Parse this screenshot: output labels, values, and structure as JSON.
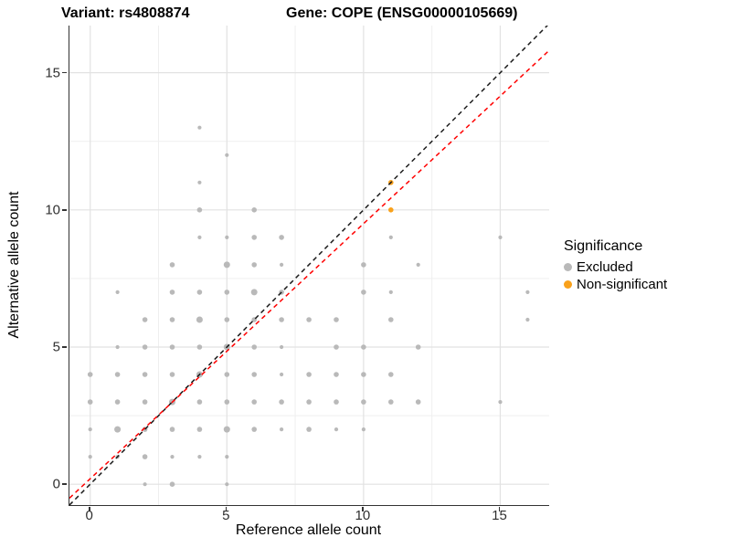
{
  "titles": {
    "variant": "Variant: rs4808874",
    "gene": "Gene: COPE (ENSG00000105669)"
  },
  "axes": {
    "x": {
      "label": "Reference allele count",
      "ticks": [
        "0",
        "5",
        "10",
        "15"
      ],
      "tick_values": [
        0,
        5,
        10,
        15
      ]
    },
    "y": {
      "label": "Alternative allele count",
      "ticks": [
        "0",
        "5",
        "10",
        "15"
      ],
      "tick_values": [
        0,
        5,
        10,
        15
      ]
    }
  },
  "legend": {
    "title": "Significance",
    "items": [
      {
        "label": "Excluded",
        "color": "#B9B9B9"
      },
      {
        "label": "Non-significant",
        "color": "#F9A11B"
      }
    ]
  },
  "chart_data": {
    "type": "scatter",
    "title": "Variant: rs4808874 / Gene: COPE (ENSG00000105669)",
    "xlabel": "Reference allele count",
    "ylabel": "Alternative allele count",
    "xlim": [
      -0.76,
      16.79
    ],
    "ylim": [
      -0.76,
      16.72
    ],
    "grid": true,
    "major_breaks": [
      0,
      5,
      10,
      15
    ],
    "minor_breaks": [
      2.5,
      7.5,
      12.5
    ],
    "legend_position": "right",
    "series": [
      {
        "name": "Excluded",
        "color": "#B9B9B9",
        "points": [
          [
            4,
            13,
            1
          ],
          [
            5,
            12,
            1
          ],
          [
            4,
            11,
            1
          ],
          [
            4,
            10,
            2
          ],
          [
            6,
            10,
            2
          ],
          [
            4,
            9,
            1
          ],
          [
            5,
            9,
            1
          ],
          [
            6,
            9,
            2
          ],
          [
            7,
            9,
            2
          ],
          [
            11,
            9,
            1
          ],
          [
            15,
            9,
            1
          ],
          [
            3,
            8,
            2
          ],
          [
            5,
            8,
            3
          ],
          [
            6,
            8,
            2
          ],
          [
            7,
            8,
            1
          ],
          [
            10,
            8,
            2
          ],
          [
            12,
            8,
            1
          ],
          [
            1,
            7,
            1
          ],
          [
            3,
            7,
            2
          ],
          [
            4,
            7,
            2
          ],
          [
            5,
            7,
            2
          ],
          [
            6,
            7,
            3
          ],
          [
            7,
            7,
            2
          ],
          [
            10,
            7,
            2
          ],
          [
            11,
            7,
            1
          ],
          [
            16,
            7,
            1
          ],
          [
            2,
            6,
            2
          ],
          [
            3,
            6,
            2
          ],
          [
            4,
            6,
            3
          ],
          [
            5,
            6,
            2
          ],
          [
            6,
            6,
            2
          ],
          [
            7,
            6,
            2
          ],
          [
            8,
            6,
            2
          ],
          [
            9,
            6,
            2
          ],
          [
            11,
            6,
            2
          ],
          [
            16,
            6,
            1
          ],
          [
            1,
            5,
            1
          ],
          [
            2,
            5,
            2
          ],
          [
            3,
            5,
            2
          ],
          [
            4,
            5,
            2
          ],
          [
            5,
            5,
            3
          ],
          [
            6,
            5,
            2
          ],
          [
            7,
            5,
            1
          ],
          [
            9,
            5,
            2
          ],
          [
            10,
            5,
            2
          ],
          [
            12,
            5,
            2
          ],
          [
            0,
            4,
            2
          ],
          [
            1,
            4,
            2
          ],
          [
            2,
            4,
            2
          ],
          [
            3,
            4,
            2
          ],
          [
            4,
            4,
            3
          ],
          [
            5,
            4,
            2
          ],
          [
            6,
            4,
            2
          ],
          [
            7,
            4,
            1
          ],
          [
            8,
            4,
            2
          ],
          [
            9,
            4,
            2
          ],
          [
            10,
            4,
            2
          ],
          [
            11,
            4,
            2
          ],
          [
            0,
            3,
            2
          ],
          [
            1,
            3,
            2
          ],
          [
            2,
            3,
            2
          ],
          [
            3,
            3,
            3
          ],
          [
            4,
            3,
            2
          ],
          [
            5,
            3,
            2
          ],
          [
            6,
            3,
            2
          ],
          [
            7,
            3,
            2
          ],
          [
            8,
            3,
            2
          ],
          [
            9,
            3,
            2
          ],
          [
            10,
            3,
            2
          ],
          [
            11,
            3,
            2
          ],
          [
            12,
            3,
            2
          ],
          [
            15,
            3,
            1
          ],
          [
            0,
            2,
            1
          ],
          [
            1,
            2,
            3
          ],
          [
            2,
            2,
            2
          ],
          [
            3,
            2,
            2
          ],
          [
            4,
            2,
            2
          ],
          [
            5,
            2,
            3
          ],
          [
            6,
            2,
            2
          ],
          [
            7,
            2,
            1
          ],
          [
            8,
            2,
            2
          ],
          [
            9,
            2,
            1
          ],
          [
            10,
            2,
            1
          ],
          [
            0,
            1,
            1
          ],
          [
            1,
            1,
            1
          ],
          [
            2,
            1,
            2
          ],
          [
            3,
            1,
            1
          ],
          [
            4,
            1,
            1
          ],
          [
            5,
            1,
            1
          ],
          [
            2,
            0,
            1
          ],
          [
            3,
            0,
            2
          ],
          [
            5,
            0,
            1
          ]
        ]
      },
      {
        "name": "Non-significant",
        "color": "#F9A11B",
        "points": [
          [
            11,
            11,
            2
          ],
          [
            11,
            10,
            2
          ]
        ]
      }
    ],
    "lines": [
      {
        "name": "identity",
        "slope": 1,
        "intercept": 0,
        "color": "#1A1A1A",
        "dash": "5,4"
      },
      {
        "name": "fit",
        "slope": 0.93,
        "intercept": 0.2,
        "color": "#FF0000",
        "dash": "5,4"
      }
    ]
  },
  "colors": {
    "grid_major": "#E2E2E2",
    "grid_minor": "#EFEFEF",
    "axis_line": "#333333",
    "tick_text": "#303030"
  }
}
